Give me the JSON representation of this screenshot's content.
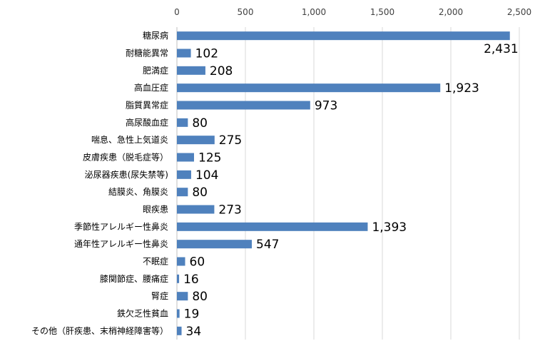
{
  "chart_data": {
    "type": "bar",
    "orientation": "horizontal",
    "title": "",
    "xlabel": "",
    "ylabel": "",
    "xlim": [
      0,
      2500
    ],
    "xticks": [
      0,
      500,
      1000,
      1500,
      2000,
      2500
    ],
    "xtick_labels": [
      "0",
      "500",
      "1,000",
      "1,500",
      "2,000",
      "2,500"
    ],
    "x_axis_position": "top",
    "grid": true,
    "legend": "none",
    "bar_color": "#4f81bd",
    "categories": [
      "糖尿病",
      "耐糖能異常",
      "肥満症",
      "高血圧症",
      "脂質異常症",
      "高尿酸血症",
      "喘息、急性上気道炎",
      "皮膚疾患（脱毛症等）",
      "泌尿器疾患(尿失禁等)",
      "結膜炎、角膜炎",
      "眼疾患",
      "季節性アレルギー性鼻炎",
      "通年性アレルギー性鼻炎",
      "不眠症",
      "膝関節症、腰痛症",
      "腎症",
      "鉄欠乏性貧血",
      "その他（肝疾患、末梢神経障害等）"
    ],
    "values": [
      2431,
      102,
      208,
      1923,
      973,
      80,
      275,
      125,
      104,
      80,
      273,
      1393,
      547,
      60,
      16,
      80,
      19,
      34
    ],
    "value_labels": [
      "2,431",
      "102",
      "208",
      "1,923",
      "973",
      "80",
      "275",
      "125",
      "104",
      "80",
      "273",
      "1,393",
      "547",
      "60",
      "16",
      "80",
      "19",
      "34"
    ]
  }
}
